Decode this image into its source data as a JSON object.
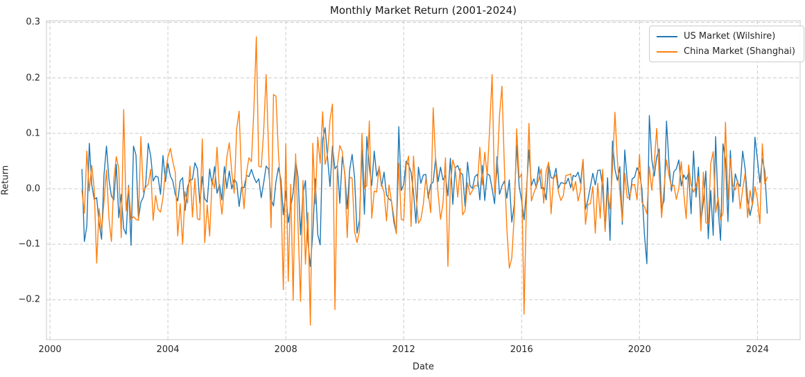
{
  "title": "Monthly Market Return (2001-2024)",
  "colors": {
    "us_line": "#1f77b4",
    "china_line": "#ff7f0e",
    "grid": "#cccccc",
    "frame": "#c8c8c8",
    "text": "#262626"
  },
  "legend": {
    "position": "upper right",
    "items": [
      {
        "label": "US Market (Wilshire)",
        "color": "#1f77b4"
      },
      {
        "label": "China Market (Shanghai)",
        "color": "#ff7f0e"
      }
    ]
  },
  "chart_data": {
    "type": "line",
    "title": "Monthly Market Return (2001-2024)",
    "xlabel": "Date",
    "ylabel": "Return",
    "grid": true,
    "grid_style": "dashed",
    "legend_position": "upper right",
    "x_start": "2001-01",
    "x_end": "2024-04",
    "frequency": "monthly",
    "x_ticks": [
      2000,
      2004,
      2008,
      2012,
      2016,
      2020,
      2024
    ],
    "y_ticks": [
      -0.2,
      -0.1,
      0.0,
      0.1,
      0.2,
      0.3
    ],
    "xlim": [
      1999.88,
      2025.45
    ],
    "ylim": [
      -0.272,
      0.303
    ],
    "series": [
      {
        "name": "US Market (Wilshire)",
        "color": "#1f77b4",
        "values": [
          0.035,
          -0.095,
          -0.067,
          0.082,
          0.008,
          -0.019,
          -0.016,
          -0.062,
          -0.091,
          0.026,
          0.077,
          0.017,
          -0.013,
          -0.02,
          0.044,
          -0.052,
          -0.01,
          -0.072,
          -0.082,
          0.006,
          -0.102,
          0.077,
          0.061,
          -0.054,
          -0.024,
          -0.015,
          0.01,
          0.082,
          0.059,
          0.014,
          0.023,
          0.021,
          -0.01,
          0.06,
          0.013,
          0.046,
          0.023,
          0.014,
          -0.01,
          -0.022,
          0.014,
          0.02,
          -0.039,
          0.003,
          0.016,
          0.017,
          0.047,
          0.036,
          -0.026,
          0.022,
          -0.018,
          -0.024,
          0.036,
          0.007,
          0.04,
          -0.008,
          0.008,
          -0.02,
          0.04,
          0.001,
          0.032,
          0.0,
          0.017,
          0.011,
          -0.032,
          0.003,
          0.002,
          0.024,
          0.022,
          0.035,
          0.021,
          0.011,
          0.018,
          -0.016,
          0.011,
          0.041,
          0.035,
          -0.019,
          -0.031,
          0.013,
          0.038,
          0.017,
          -0.047,
          -0.004,
          -0.061,
          -0.033,
          -0.007,
          0.051,
          0.02,
          -0.083,
          -0.008,
          0.015,
          -0.095,
          -0.14,
          -0.079,
          0.018,
          -0.082,
          -0.101,
          0.088,
          0.11,
          0.056,
          0.004,
          0.077,
          0.036,
          0.042,
          -0.026,
          0.058,
          0.029,
          -0.036,
          0.034,
          0.062,
          0.02,
          -0.08,
          -0.056,
          0.07,
          -0.046,
          0.094,
          0.039,
          0.006,
          0.068,
          0.023,
          0.038,
          0.004,
          0.03,
          -0.011,
          -0.018,
          -0.022,
          -0.06,
          -0.08,
          0.112,
          -0.003,
          0.008,
          0.05,
          0.043,
          0.03,
          -0.007,
          -0.062,
          0.039,
          0.01,
          0.025,
          0.026,
          -0.017,
          0.008,
          0.012,
          0.055,
          0.013,
          0.039,
          0.016,
          0.024,
          -0.013,
          0.055,
          -0.028,
          0.038,
          0.042,
          0.029,
          0.026,
          -0.032,
          0.048,
          0.005,
          0.001,
          0.022,
          0.026,
          -0.02,
          0.042,
          -0.021,
          0.027,
          0.024,
          0.0,
          -0.027,
          0.058,
          -0.01,
          0.005,
          0.014,
          -0.017,
          0.016,
          -0.06,
          -0.029,
          0.079,
          0.005,
          -0.021,
          -0.056,
          -0.001,
          0.07,
          0.006,
          0.018,
          0.002,
          0.04,
          0.001,
          0.002,
          -0.02,
          0.045,
          0.02,
          0.019,
          0.037,
          0.001,
          0.011,
          0.01,
          0.009,
          0.019,
          0.002,
          0.024,
          0.022,
          0.03,
          0.01,
          0.053,
          -0.037,
          -0.02,
          0.004,
          0.028,
          0.007,
          0.033,
          0.034,
          0.002,
          -0.073,
          0.02,
          -0.093,
          0.086,
          0.035,
          0.015,
          0.04,
          -0.064,
          0.07,
          0.015,
          -0.02,
          0.018,
          0.021,
          0.038,
          0.029,
          -0.001,
          -0.082,
          -0.135,
          0.132,
          0.053,
          0.023,
          0.057,
          0.072,
          -0.036,
          -0.021,
          0.122,
          0.045,
          -0.004,
          0.031,
          0.036,
          0.052,
          0.005,
          0.025,
          0.017,
          0.029,
          -0.045,
          0.068,
          -0.015,
          0.039,
          -0.059,
          -0.025,
          0.032,
          -0.09,
          -0.003,
          -0.084,
          0.094,
          -0.037,
          -0.093,
          0.081,
          0.052,
          -0.059,
          0.069,
          -0.024,
          0.027,
          0.011,
          0.004,
          0.068,
          0.036,
          -0.019,
          -0.048,
          -0.027,
          0.093,
          0.053,
          0.011,
          0.054,
          0.032,
          -0.044
        ]
      },
      {
        "name": "China Market (Shanghai)",
        "color": "#ff7f0e",
        "values": [
          -0.003,
          -0.044,
          0.068,
          -0.004,
          0.042,
          0.0,
          -0.134,
          -0.036,
          -0.076,
          -0.023,
          0.034,
          -0.053,
          -0.095,
          0.017,
          0.058,
          0.036,
          -0.088,
          0.143,
          -0.04,
          0.003,
          -0.056,
          -0.05,
          -0.055,
          -0.057,
          0.094,
          -0.006,
          0.003,
          0.008,
          0.035,
          -0.057,
          -0.012,
          -0.037,
          -0.042,
          -0.016,
          0.031,
          0.057,
          0.073,
          0.049,
          0.03,
          -0.085,
          -0.027,
          -0.1,
          -0.005,
          -0.026,
          0.041,
          -0.051,
          0.019,
          -0.054,
          -0.056,
          0.09,
          -0.097,
          -0.029,
          -0.085,
          0.017,
          0.001,
          0.075,
          -0.006,
          -0.046,
          0.002,
          0.057,
          0.083,
          0.03,
          -0.008,
          0.108,
          0.14,
          0.016,
          -0.036,
          0.029,
          0.056,
          0.049,
          0.142,
          0.274,
          0.041,
          0.039,
          0.105,
          0.206,
          0.07,
          -0.07,
          0.17,
          0.167,
          0.064,
          -0.003,
          -0.182,
          0.081,
          -0.167,
          0.008,
          -0.201,
          0.063,
          -0.07,
          -0.203,
          0.015,
          -0.136,
          -0.043,
          -0.246,
          0.082,
          -0.027,
          0.093,
          0.046,
          0.139,
          0.044,
          0.063,
          0.124,
          0.153,
          -0.218,
          0.042,
          0.078,
          0.067,
          0.026,
          -0.088,
          0.021,
          0.019,
          -0.077,
          -0.097,
          -0.075,
          0.1,
          0.0,
          0.006,
          0.122,
          -0.053,
          -0.004,
          -0.006,
          0.041,
          0.008,
          -0.006,
          -0.058,
          0.007,
          -0.022,
          -0.05,
          -0.081,
          0.046,
          -0.055,
          -0.057,
          0.042,
          0.059,
          -0.068,
          0.059,
          -0.01,
          -0.062,
          -0.055,
          -0.027,
          0.019,
          -0.008,
          -0.043,
          0.146,
          0.051,
          -0.008,
          -0.055,
          -0.026,
          0.056,
          -0.14,
          0.007,
          0.052,
          0.036,
          -0.015,
          0.037,
          -0.047,
          -0.039,
          0.011,
          -0.011,
          -0.003,
          0.006,
          0.005,
          0.075,
          0.007,
          0.066,
          0.024,
          0.109,
          0.206,
          -0.007,
          0.031,
          0.132,
          0.185,
          0.038,
          -0.073,
          -0.143,
          -0.125,
          -0.048,
          0.108,
          0.019,
          0.027,
          -0.226,
          -0.018,
          0.118,
          -0.022,
          -0.007,
          0.004,
          0.017,
          0.036,
          -0.026,
          0.032,
          0.048,
          -0.045,
          0.018,
          0.026,
          -0.006,
          -0.021,
          -0.012,
          0.024,
          0.025,
          0.027,
          -0.004,
          0.013,
          -0.022,
          -0.003,
          0.053,
          -0.064,
          -0.028,
          -0.027,
          0.004,
          -0.08,
          0.01,
          -0.053,
          0.035,
          -0.077,
          -0.006,
          -0.036,
          0.036,
          0.138,
          0.051,
          -0.004,
          -0.058,
          0.028,
          -0.016,
          -0.016,
          0.007,
          0.008,
          -0.02,
          0.062,
          -0.024,
          -0.032,
          -0.045,
          0.04,
          -0.003,
          0.046,
          0.109,
          0.026,
          -0.052,
          0.002,
          0.052,
          0.024,
          0.003,
          0.007,
          -0.019,
          0.001,
          0.049,
          -0.007,
          -0.054,
          0.043,
          0.007,
          -0.006,
          0.005,
          0.021,
          -0.076,
          0.03,
          -0.061,
          -0.063,
          0.046,
          0.067,
          -0.043,
          -0.016,
          -0.056,
          -0.043,
          0.12,
          -0.02,
          0.054,
          0.007,
          -0.002,
          0.015,
          -0.036,
          -0.001,
          0.028,
          -0.052,
          -0.003,
          -0.029,
          0.004,
          -0.019,
          -0.063,
          0.081,
          0.009,
          0.021
        ]
      }
    ]
  }
}
